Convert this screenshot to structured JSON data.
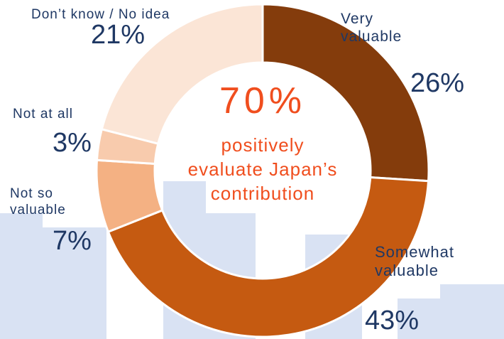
{
  "chart_data": {
    "type": "pie",
    "categories": [
      "Very valuable",
      "Somewhat valuable",
      "Not so valuable",
      "Not at all",
      "Don’t know / No idea"
    ],
    "values": [
      26,
      43,
      7,
      3,
      21
    ],
    "value_labels": [
      "26%",
      "43%",
      "7%",
      "3%",
      "21%"
    ],
    "colors": [
      "#843C0C",
      "#C55A11",
      "#F4B183",
      "#F8CBAD",
      "#FBE5D6"
    ],
    "donut": true,
    "annotation": {
      "headline": "70%",
      "text": "positively evaluate Japan’s contribution"
    }
  }
}
